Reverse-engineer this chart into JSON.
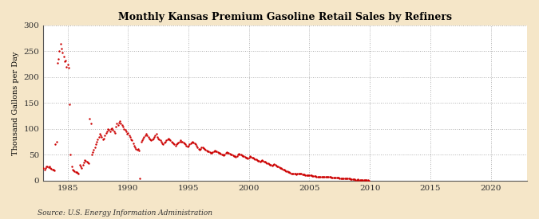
{
  "title": "Monthly Kansas Premium Gasoline Retail Sales by Refiners",
  "ylabel": "Thousand Gallons per Day",
  "source": "Source: U.S. Energy Information Administration",
  "background_color": "#f5e6c8",
  "plot_bg_color": "#ffffff",
  "dot_color": "#cc0000",
  "dot_size": 3,
  "xlim": [
    1983,
    2023
  ],
  "ylim": [
    0,
    300
  ],
  "xticks": [
    1985,
    1990,
    1995,
    2000,
    2005,
    2010,
    2015,
    2020
  ],
  "yticks": [
    0,
    50,
    100,
    150,
    200,
    250,
    300
  ],
  "data": {
    "1983-01": 25,
    "1983-02": 22,
    "1983-03": 24,
    "1983-04": 28,
    "1983-05": 27,
    "1983-06": 26,
    "1983-07": 27,
    "1983-08": 25,
    "1983-09": 23,
    "1983-10": 22,
    "1983-11": 21,
    "1983-12": 20,
    "1984-01": 70,
    "1984-02": 75,
    "1984-03": 228,
    "1984-04": 235,
    "1984-05": 250,
    "1984-06": 265,
    "1984-07": 255,
    "1984-08": 248,
    "1984-09": 240,
    "1984-10": 230,
    "1984-11": 232,
    "1984-12": 220,
    "1985-01": 225,
    "1985-02": 218,
    "1985-03": 148,
    "1985-04": 50,
    "1985-05": 28,
    "1985-06": 22,
    "1985-07": 20,
    "1985-08": 18,
    "1985-09": 17,
    "1985-10": 16,
    "1985-11": 15,
    "1985-12": 14,
    "1986-01": 30,
    "1986-02": 28,
    "1986-03": 25,
    "1986-04": 30,
    "1986-05": 35,
    "1986-06": 40,
    "1986-07": 38,
    "1986-08": 37,
    "1986-09": 35,
    "1986-10": 33,
    "1986-11": 120,
    "1986-12": 110,
    "1987-01": 50,
    "1987-02": 55,
    "1987-03": 60,
    "1987-04": 65,
    "1987-05": 70,
    "1987-06": 75,
    "1987-07": 80,
    "1987-08": 85,
    "1987-09": 90,
    "1987-10": 88,
    "1987-11": 85,
    "1987-12": 80,
    "1988-01": 82,
    "1988-02": 88,
    "1988-03": 92,
    "1988-04": 95,
    "1988-05": 100,
    "1988-06": 98,
    "1988-07": 95,
    "1988-08": 100,
    "1988-09": 102,
    "1988-10": 98,
    "1988-11": 95,
    "1988-12": 92,
    "1989-01": 105,
    "1989-02": 110,
    "1989-03": 108,
    "1989-04": 112,
    "1989-05": 115,
    "1989-06": 110,
    "1989-07": 108,
    "1989-08": 105,
    "1989-09": 100,
    "1989-10": 98,
    "1989-11": 95,
    "1989-12": 90,
    "1990-01": 92,
    "1990-02": 88,
    "1990-03": 85,
    "1990-04": 80,
    "1990-05": 78,
    "1990-06": 72,
    "1990-07": 68,
    "1990-08": 65,
    "1990-09": 62,
    "1990-10": 60,
    "1990-11": 62,
    "1990-12": 58,
    "1991-01": 5,
    "1991-02": 75,
    "1991-03": 78,
    "1991-04": 82,
    "1991-05": 85,
    "1991-06": 88,
    "1991-07": 90,
    "1991-08": 88,
    "1991-09": 85,
    "1991-10": 82,
    "1991-11": 80,
    "1991-12": 78,
    "1992-01": 80,
    "1992-02": 82,
    "1992-03": 85,
    "1992-04": 88,
    "1992-05": 90,
    "1992-06": 85,
    "1992-07": 82,
    "1992-08": 80,
    "1992-09": 78,
    "1992-10": 75,
    "1992-11": 72,
    "1992-12": 70,
    "1993-01": 73,
    "1993-02": 75,
    "1993-03": 78,
    "1993-04": 80,
    "1993-05": 82,
    "1993-06": 80,
    "1993-07": 78,
    "1993-08": 76,
    "1993-09": 74,
    "1993-10": 72,
    "1993-11": 70,
    "1993-12": 68,
    "1994-01": 70,
    "1994-02": 72,
    "1994-03": 74,
    "1994-04": 76,
    "1994-05": 78,
    "1994-06": 76,
    "1994-07": 75,
    "1994-08": 74,
    "1994-09": 72,
    "1994-10": 70,
    "1994-11": 68,
    "1994-12": 66,
    "1995-01": 68,
    "1995-02": 70,
    "1995-03": 72,
    "1995-04": 74,
    "1995-05": 75,
    "1995-06": 73,
    "1995-07": 72,
    "1995-08": 70,
    "1995-09": 68,
    "1995-10": 65,
    "1995-11": 62,
    "1995-12": 60,
    "1996-01": 62,
    "1996-02": 64,
    "1996-03": 65,
    "1996-04": 63,
    "1996-05": 61,
    "1996-06": 60,
    "1996-07": 58,
    "1996-08": 57,
    "1996-09": 56,
    "1996-10": 55,
    "1996-11": 54,
    "1996-12": 53,
    "1997-01": 55,
    "1997-02": 57,
    "1997-03": 58,
    "1997-04": 57,
    "1997-05": 56,
    "1997-06": 55,
    "1997-07": 54,
    "1997-08": 53,
    "1997-09": 52,
    "1997-10": 51,
    "1997-11": 50,
    "1997-12": 49,
    "1998-01": 51,
    "1998-02": 53,
    "1998-03": 55,
    "1998-04": 54,
    "1998-05": 53,
    "1998-06": 52,
    "1998-07": 51,
    "1998-08": 50,
    "1998-09": 49,
    "1998-10": 48,
    "1998-11": 47,
    "1998-12": 46,
    "1999-01": 48,
    "1999-02": 50,
    "1999-03": 52,
    "1999-04": 51,
    "1999-05": 50,
    "1999-06": 49,
    "1999-07": 48,
    "1999-08": 47,
    "1999-09": 46,
    "1999-10": 45,
    "1999-11": 44,
    "1999-12": 43,
    "2000-01": 45,
    "2000-02": 47,
    "2000-03": 46,
    "2000-04": 45,
    "2000-05": 44,
    "2000-06": 43,
    "2000-07": 42,
    "2000-08": 41,
    "2000-09": 40,
    "2000-10": 39,
    "2000-11": 38,
    "2000-12": 37,
    "2001-01": 39,
    "2001-02": 40,
    "2001-03": 38,
    "2001-04": 37,
    "2001-05": 36,
    "2001-06": 35,
    "2001-07": 34,
    "2001-08": 33,
    "2001-09": 32,
    "2001-10": 31,
    "2001-11": 30,
    "2001-12": 29,
    "2002-01": 31,
    "2002-02": 32,
    "2002-03": 30,
    "2002-04": 29,
    "2002-05": 28,
    "2002-06": 27,
    "2002-07": 26,
    "2002-08": 25,
    "2002-09": 24,
    "2002-10": 23,
    "2002-11": 22,
    "2002-12": 21,
    "2003-01": 20,
    "2003-02": 19,
    "2003-03": 18,
    "2003-04": 17,
    "2003-05": 16,
    "2003-06": 15,
    "2003-07": 14,
    "2003-08": 13,
    "2003-09": 13,
    "2003-10": 13,
    "2003-11": 13,
    "2003-12": 12,
    "2004-01": 14,
    "2004-02": 14,
    "2004-03": 13,
    "2004-04": 13,
    "2004-05": 13,
    "2004-06": 12,
    "2004-07": 12,
    "2004-08": 12,
    "2004-09": 11,
    "2004-10": 11,
    "2004-11": 11,
    "2004-12": 10,
    "2005-01": 10,
    "2005-02": 10,
    "2005-03": 10,
    "2005-04": 9,
    "2005-05": 9,
    "2005-06": 9,
    "2005-07": 9,
    "2005-08": 8,
    "2005-09": 8,
    "2005-10": 8,
    "2005-11": 8,
    "2005-12": 8,
    "2006-01": 8,
    "2006-02": 8,
    "2006-03": 8,
    "2006-04": 7,
    "2006-05": 7,
    "2006-06": 7,
    "2006-07": 7,
    "2006-08": 7,
    "2006-09": 7,
    "2006-10": 7,
    "2006-11": 6,
    "2006-12": 6,
    "2007-01": 6,
    "2007-02": 6,
    "2007-03": 6,
    "2007-04": 6,
    "2007-05": 6,
    "2007-06": 6,
    "2007-07": 5,
    "2007-08": 5,
    "2007-09": 5,
    "2007-10": 5,
    "2007-11": 5,
    "2007-12": 5,
    "2008-01": 4,
    "2008-02": 4,
    "2008-03": 4,
    "2008-04": 4,
    "2008-05": 4,
    "2008-06": 3,
    "2008-07": 3,
    "2008-08": 3,
    "2008-09": 3,
    "2008-10": 3,
    "2008-11": 2,
    "2008-12": 2,
    "2009-01": 3,
    "2009-02": 2,
    "2009-03": 2,
    "2009-04": 2,
    "2009-05": 1,
    "2009-06": 1,
    "2009-07": 1,
    "2009-08": 1,
    "2009-09": 1,
    "2009-10": 1,
    "2009-11": 1,
    "2009-12": 0
  }
}
